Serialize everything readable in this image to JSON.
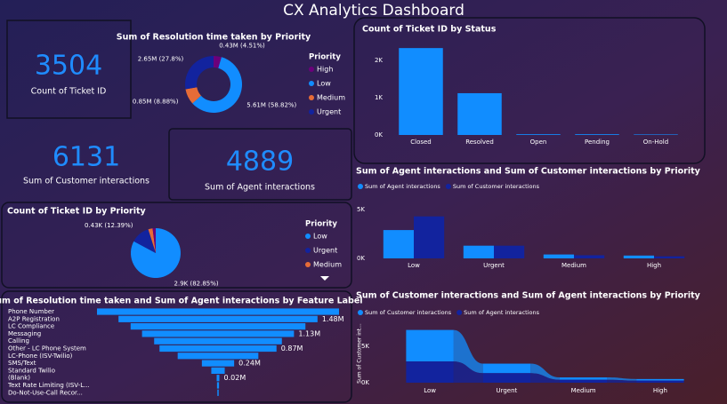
{
  "title": "CX Analytics Dashboard",
  "cards": [
    {
      "value": 3504,
      "label": "Count of Ticket ID"
    },
    {
      "value": 6131,
      "label": "Sum of Customer interactions"
    },
    {
      "value": 4889,
      "label": "Sum of Agent interactions"
    }
  ],
  "chart_data": [
    {
      "type": "donut",
      "title": "Sum of Resolution time taken by Priority",
      "legend_title": "Priority",
      "categories": [
        "High",
        "Low",
        "Medium",
        "Urgent"
      ],
      "values": [
        0.43,
        5.61,
        0.85,
        2.65
      ],
      "value_labels": [
        "0.43M (4.51%)",
        "5.61M (58.82%)",
        "0.85M (8.88%)",
        "2.65M (27.8%)"
      ],
      "colors": [
        "#6b007b",
        "#118dff",
        "#e66c37",
        "#12239e"
      ]
    },
    {
      "type": "bar",
      "title": "Count of Ticket ID by Status",
      "categories": [
        "Closed",
        "Resolved",
        "Open",
        "Pending",
        "On-Hold"
      ],
      "values": [
        2330,
        1120,
        20,
        20,
        14
      ],
      "color": "#118dff",
      "ylim": [
        0,
        2500
      ],
      "yticks": [
        {
          "value": 0,
          "label": "0K"
        },
        {
          "value": 1000,
          "label": "1K"
        },
        {
          "value": 2000,
          "label": "2K"
        }
      ]
    },
    {
      "type": "bar",
      "title": "Sum of Agent interactions and Sum of Customer interactions by Priority",
      "categories": [
        "Low",
        "Urgent",
        "Medium",
        "High"
      ],
      "series": [
        {
          "name": "Sum of Agent interactions",
          "color": "#118dff",
          "values": [
            2900,
            1300,
            400,
            289
          ]
        },
        {
          "name": "Sum of Customer interactions",
          "color": "#12239e",
          "values": [
            4300,
            1300,
            320,
            211
          ]
        }
      ],
      "ylim": [
        0,
        6000
      ],
      "yticks": [
        {
          "value": 0,
          "label": "0K"
        },
        {
          "value": 5000,
          "label": "5K"
        }
      ]
    },
    {
      "type": "pie",
      "title": "Count of Ticket ID by Priority",
      "legend_title": "Priority",
      "categories": [
        "Low",
        "Urgent",
        "Medium",
        null
      ],
      "values": [
        2.9,
        0.43,
        0.1,
        0.07
      ],
      "value_labels": [
        "2.9K (82.85%)",
        "0.43K (12.39%)",
        null,
        null
      ],
      "colors": [
        "#118dff",
        "#12239e",
        "#e66c37",
        "#6b007b"
      ]
    },
    {
      "type": "ribbon",
      "title": "Sum of Customer interactions and Sum of Agent interactions by Priority",
      "y_label": "Sum of Customer int...",
      "categories": [
        "Low",
        "Urgent",
        "Medium",
        "High"
      ],
      "series": [
        {
          "name": "Sum of Customer interactions",
          "color": "#118dff",
          "values": [
            4300,
            1300,
            320,
            211
          ]
        },
        {
          "name": "Sum of Agent interactions",
          "color": "#12239e",
          "values": [
            2900,
            1300,
            400,
            289
          ]
        }
      ],
      "ylim": [
        0,
        8000
      ],
      "yticks": [
        {
          "value": 0,
          "label": "0K"
        },
        {
          "value": 5000,
          "label": "5K"
        }
      ]
    },
    {
      "type": "funnel",
      "title": "Sum of Resolution time taken and Sum of Agent interactions by Feature Label",
      "categories": [
        "Phone Number",
        "A2P Registration",
        "LC Compliance",
        "Messaging",
        "Calling",
        "Other - LC Phone System",
        "LC-Phone (ISV-Twilio)",
        "SMS/Text",
        "Standard Twilio",
        "(Blank)",
        "Text Rate Limiting (ISV-L...",
        "Do-Not-Use-Call Recor..."
      ],
      "values": [
        1.8,
        1.48,
        1.3,
        1.13,
        0.95,
        0.87,
        0.6,
        0.24,
        0.1,
        0.02,
        0.015,
        0.01
      ],
      "value_labels": [
        null,
        "1.48M",
        null,
        "1.13M",
        null,
        "0.87M",
        null,
        "0.24M",
        null,
        "0.02M",
        null,
        null
      ],
      "color": "#118dff"
    }
  ]
}
